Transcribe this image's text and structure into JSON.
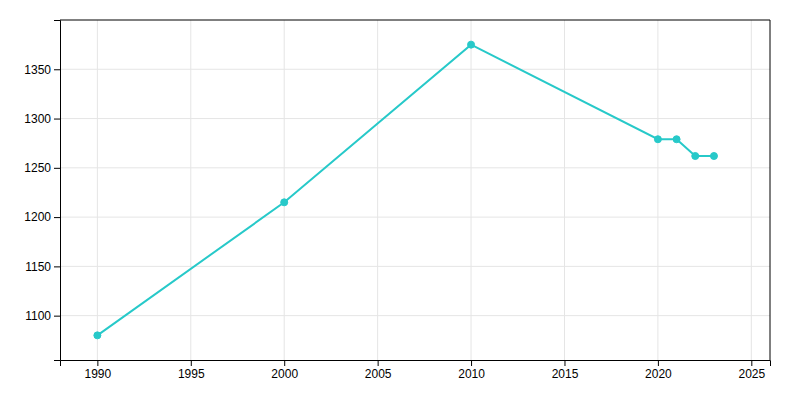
{
  "chart_data": {
    "type": "line",
    "x": [
      1990,
      2000,
      2010,
      2020,
      2021,
      2022,
      2023
    ],
    "values": [
      1080,
      1215,
      1375,
      1279,
      1279,
      1262,
      1262
    ],
    "color": "#27C9C9",
    "marker": "circle",
    "xlim": [
      1988,
      2026
    ],
    "ylim": [
      1055,
      1400
    ],
    "xticks": [
      1990,
      1995,
      2000,
      2005,
      2010,
      2015,
      2020,
      2025
    ],
    "yticks": [
      1100,
      1150,
      1200,
      1250,
      1300,
      1350
    ],
    "grid": true
  }
}
